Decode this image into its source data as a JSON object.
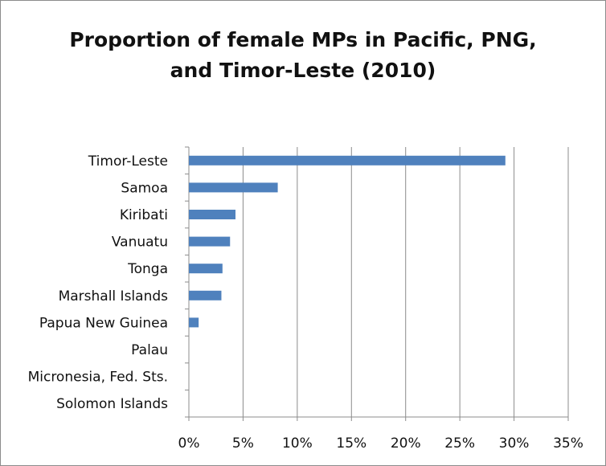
{
  "chart_data": {
    "type": "bar",
    "orientation": "horizontal",
    "title": "Proportion of female MPs in Pacific, PNG, and Timor-Leste (2010)",
    "title_lines": [
      "Proportion of female MPs in Pacific, PNG,",
      "and Timor-Leste (2010)"
    ],
    "xlabel": "",
    "ylabel": "",
    "categories": [
      "Timor-Leste",
      "Samoa",
      "Kiribati",
      "Vanuatu",
      "Tonga",
      "Marshall Islands",
      "Papua New Guinea",
      "Palau",
      "Micronesia, Fed. Sts.",
      "Solomon Islands"
    ],
    "values": [
      29.2,
      8.2,
      4.3,
      3.8,
      3.1,
      3.0,
      0.9,
      0,
      0,
      0
    ],
    "unit": "%",
    "xlim": [
      0,
      35
    ],
    "xticks": [
      0,
      5,
      10,
      15,
      20,
      25,
      30,
      35
    ],
    "xtick_labels": [
      "0%",
      "5%",
      "10%",
      "15%",
      "20%",
      "25%",
      "30%",
      "35%"
    ],
    "grid": "vertical",
    "legend": "none",
    "colors": {
      "bar": "#4f81bd",
      "grid": "#8c8c8c",
      "axis": "#8c8c8c"
    }
  }
}
